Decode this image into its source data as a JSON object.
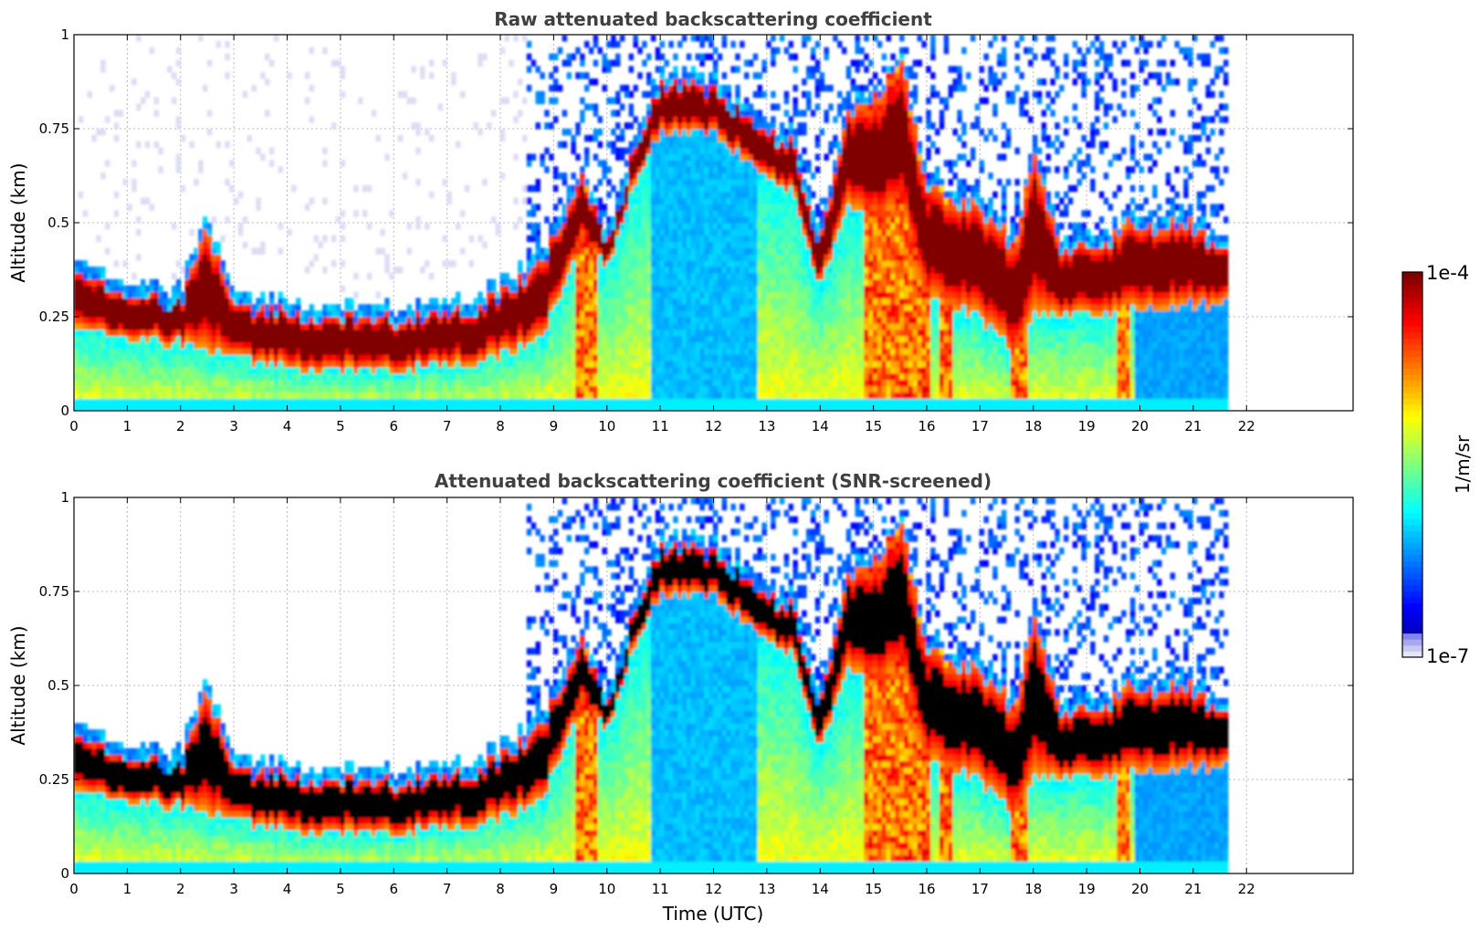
{
  "chart_data": [
    {
      "type": "heatmap",
      "title": "Raw attenuated backscattering coefficient",
      "xlabel": "",
      "ylabel": "Altitude (km)",
      "xlim": [
        0,
        24
      ],
      "ylim": [
        0,
        1
      ],
      "xticks": [
        "0",
        "1",
        "2",
        "3",
        "4",
        "5",
        "6",
        "7",
        "8",
        "9",
        "10",
        "11",
        "12",
        "13",
        "14",
        "15",
        "16",
        "17",
        "18",
        "19",
        "20",
        "21",
        "22"
      ],
      "yticks": [
        "0",
        "0.25",
        "0.5",
        "0.75",
        "1"
      ],
      "data_end_hour": 21.65,
      "grid": true,
      "screened": false,
      "description_profile": {
        "time": [
          0,
          1,
          2,
          2.5,
          3,
          4,
          5,
          6,
          7,
          8,
          8.8,
          9.5,
          10,
          10.5,
          11,
          12,
          13,
          13.5,
          14,
          14.5,
          15,
          15.5,
          16,
          17,
          17.7,
          18,
          18.5,
          19,
          20,
          21,
          21.65
        ],
        "layer_top_km": [
          0.38,
          0.33,
          0.3,
          0.5,
          0.28,
          0.28,
          0.26,
          0.26,
          0.27,
          0.32,
          0.42,
          0.62,
          0.45,
          0.7,
          0.88,
          0.87,
          0.75,
          0.72,
          0.45,
          0.8,
          0.82,
          0.95,
          0.6,
          0.55,
          0.45,
          0.72,
          0.45,
          0.45,
          0.5,
          0.5,
          0.45
        ],
        "layer_base_km": [
          0.22,
          0.2,
          0.18,
          0.16,
          0.14,
          0.12,
          0.11,
          0.11,
          0.12,
          0.15,
          0.2,
          0.45,
          0.38,
          0.6,
          0.74,
          0.74,
          0.62,
          0.58,
          0.32,
          0.55,
          0.5,
          0.55,
          0.3,
          0.25,
          0.15,
          0.27,
          0.26,
          0.26,
          0.27,
          0.28,
          0.3
        ]
      }
    },
    {
      "type": "heatmap",
      "title": "Attenuated backscattering coefficient (SNR-screened)",
      "xlabel": "Time (UTC)",
      "ylabel": "Altitude (km)",
      "xlim": [
        0,
        24
      ],
      "ylim": [
        0,
        1
      ],
      "xticks": [
        "0",
        "1",
        "2",
        "3",
        "4",
        "5",
        "6",
        "7",
        "8",
        "9",
        "10",
        "11",
        "12",
        "13",
        "14",
        "15",
        "16",
        "17",
        "18",
        "19",
        "20",
        "21",
        "22"
      ],
      "yticks": [
        "0",
        "0.25",
        "0.5",
        "0.75",
        "1"
      ],
      "data_end_hour": 21.65,
      "grid": true,
      "screened": true
    }
  ],
  "colorbar": {
    "label": "1/m/sr",
    "max_label": "1e-4",
    "min_label": "1e-7",
    "scale": "log",
    "colormap": "jet"
  }
}
